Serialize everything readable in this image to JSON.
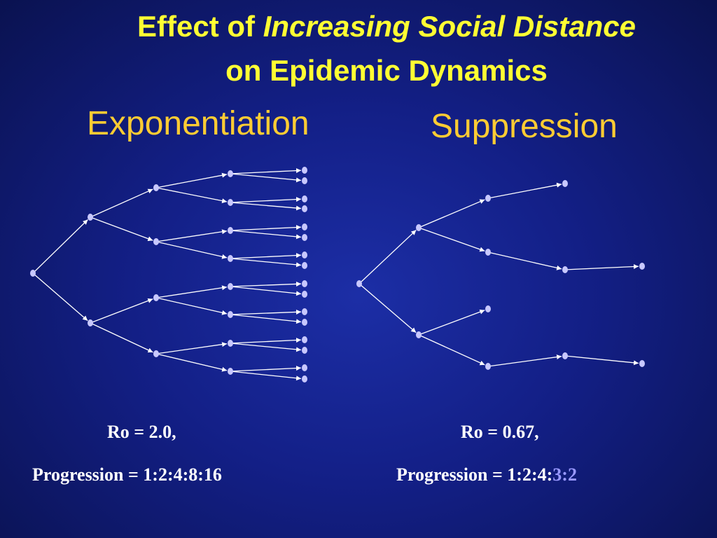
{
  "title": {
    "line1_prefix": "Effect of ",
    "line1_emphasis": "Increasing Social Distance",
    "line2": "on Epidemic Dynamics"
  },
  "panels": {
    "left": {
      "heading": "Exponentiation",
      "ro": "Ro = 2.0,",
      "progression": "Progression = 1:2:4:8:16"
    },
    "right": {
      "heading": "Suppression",
      "ro": "Ro = 0.67,",
      "progression_prefix": "Progression = 1:2:4:",
      "progression_highlight": "3:2"
    }
  },
  "colors": {
    "title": "#ffff33",
    "heading": "#ffcc33",
    "caption": "#ffffff",
    "highlight": "#9999ff",
    "node": "#c8c8ff",
    "edge": "#ffffff"
  }
}
